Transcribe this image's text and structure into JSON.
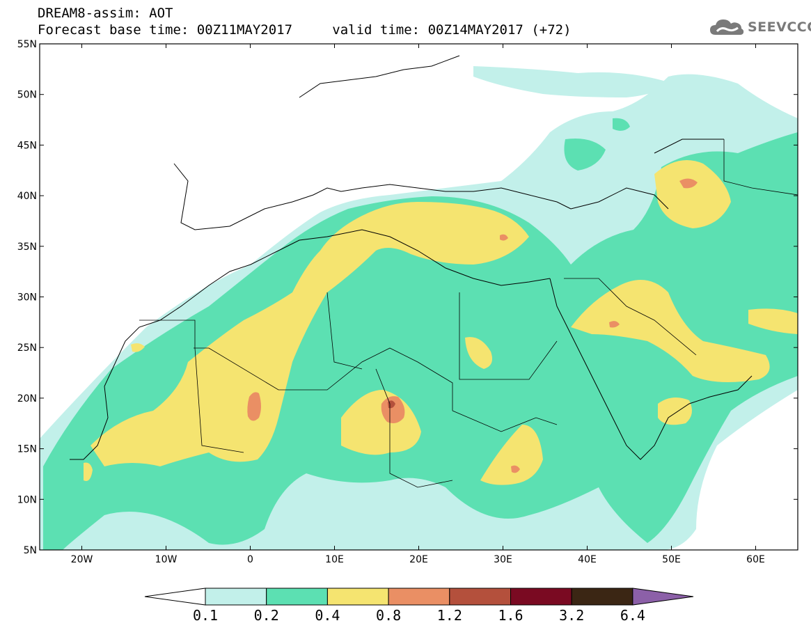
{
  "title": {
    "line1": "DREAM8-assim: AOT",
    "base_label": "Forecast base time:",
    "base_time": "00Z11MAY2017",
    "valid_label": "valid time:",
    "valid_time": "00Z14MAY2017",
    "lead": "(+72)"
  },
  "logo": {
    "text": "SEEVCCC",
    "icon": "cloud-icon"
  },
  "map": {
    "lon_range": [
      -25,
      65
    ],
    "lat_range": [
      5,
      55
    ],
    "lon_ticks": [
      {
        "value": -20,
        "label": "20W"
      },
      {
        "value": -10,
        "label": "10W"
      },
      {
        "value": 0,
        "label": "0"
      },
      {
        "value": 10,
        "label": "10E"
      },
      {
        "value": 20,
        "label": "20E"
      },
      {
        "value": 30,
        "label": "30E"
      },
      {
        "value": 40,
        "label": "40E"
      },
      {
        "value": 50,
        "label": "50E"
      },
      {
        "value": 60,
        "label": "60E"
      }
    ],
    "lat_ticks": [
      {
        "value": 5,
        "label": "5N"
      },
      {
        "value": 10,
        "label": "10N"
      },
      {
        "value": 15,
        "label": "15N"
      },
      {
        "value": 20,
        "label": "20N"
      },
      {
        "value": 25,
        "label": "25N"
      },
      {
        "value": 30,
        "label": "30N"
      },
      {
        "value": 35,
        "label": "35N"
      },
      {
        "value": 40,
        "label": "40N"
      },
      {
        "value": 45,
        "label": "45N"
      },
      {
        "value": 50,
        "label": "50N"
      },
      {
        "value": 55,
        "label": "55N"
      }
    ]
  },
  "colorbar": {
    "levels": [
      "0.1",
      "0.2",
      "0.4",
      "0.8",
      "1.2",
      "1.6",
      "3.2",
      "6.4"
    ],
    "colors": [
      "#ffffff",
      "#c2f0ea",
      "#5ce0b2",
      "#f5e470",
      "#ea8f64",
      "#b4503c",
      "#7a0a22",
      "#3b2614",
      "#8c60a8"
    ]
  }
}
